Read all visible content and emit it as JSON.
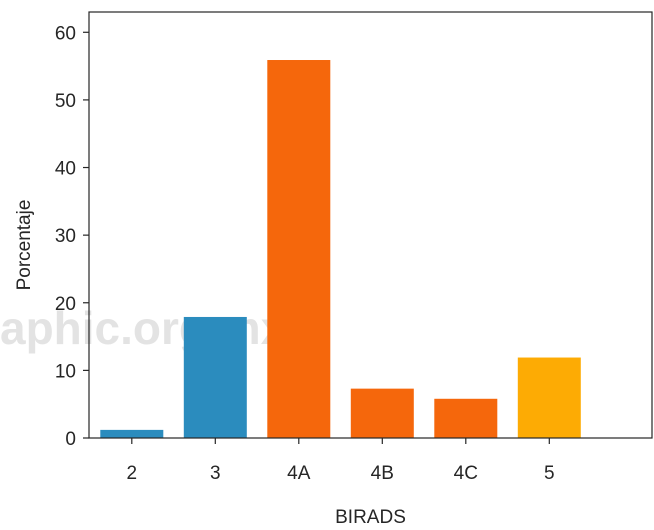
{
  "chart_data": {
    "type": "bar",
    "xlabel": "BIRADS",
    "ylabel": "Porcentaje",
    "categories": [
      "2",
      "3",
      "4A",
      "4B",
      "4C",
      "5"
    ],
    "values": [
      1.2,
      17.9,
      55.9,
      7.3,
      5.8,
      11.9
    ],
    "colors": [
      "#2b8cbe",
      "#2b8cbe",
      "#f5670c",
      "#f5670c",
      "#f5670c",
      "#fdab04"
    ],
    "ylim": [
      0,
      63
    ],
    "yticks": [
      0,
      10,
      20,
      30,
      40,
      50,
      60
    ],
    "grid": false
  },
  "watermark": {
    "text": "aphic.org.mx"
  }
}
